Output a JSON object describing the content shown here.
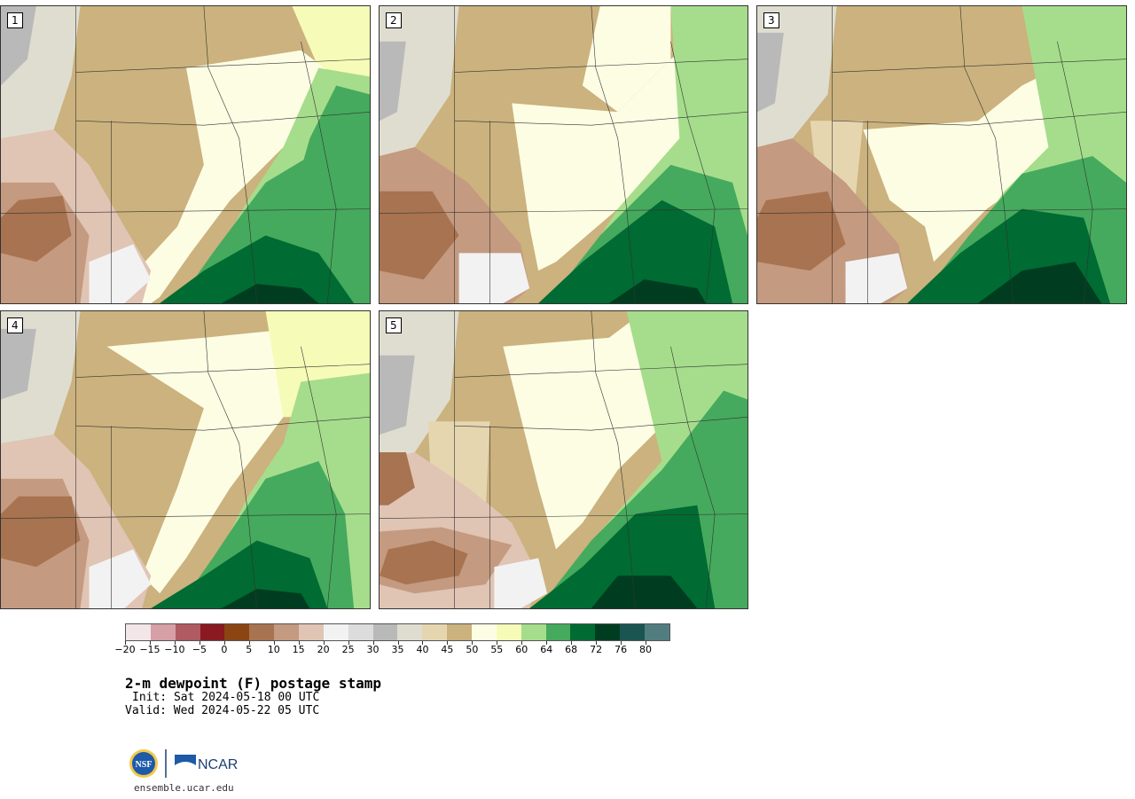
{
  "panels": [
    {
      "label": "1"
    },
    {
      "label": "2"
    },
    {
      "label": "3"
    },
    {
      "label": "4"
    },
    {
      "label": "5"
    }
  ],
  "colorbar": {
    "colors": [
      "#f3e6e8",
      "#d6a0a6",
      "#b05a61",
      "#891a22",
      "#8b4513",
      "#a87350",
      "#c49a80",
      "#e0c4b4",
      "#f2f2f2",
      "#dcdcdc",
      "#b9b9b9",
      "#dfddd0",
      "#e6d6b0",
      "#cbb27e",
      "#fdfde4",
      "#f6fbb8",
      "#a6dd8c",
      "#45aa5d",
      "#006b32",
      "#003d20",
      "#1b5552",
      "#527d80"
    ],
    "ticks": [
      "−20",
      "−15",
      "−10",
      "−5",
      "0",
      "5",
      "10",
      "15",
      "20",
      "25",
      "30",
      "35",
      "40",
      "45",
      "50",
      "55",
      "60",
      "64",
      "68",
      "72",
      "76",
      "80"
    ]
  },
  "title": "2-m dewpoint (F) postage stamp",
  "init": "Init: Sat 2024-05-18 00 UTC",
  "valid": "Valid: Wed 2024-05-22 05 UTC",
  "logos": {
    "left": "NSF",
    "right": "NCAR"
  },
  "site": "ensemble.ucar.edu"
}
